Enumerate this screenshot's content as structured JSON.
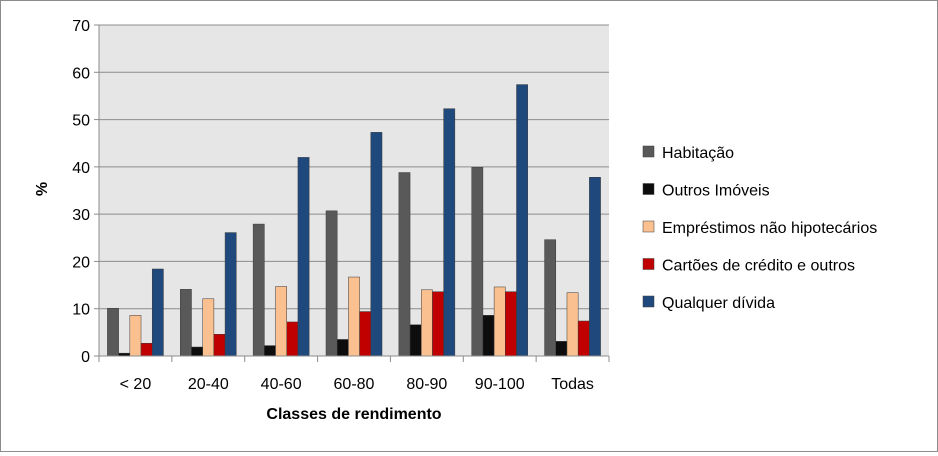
{
  "chart_data": {
    "type": "bar",
    "title": "",
    "xlabel": "Classes de rendimento",
    "ylabel": "%",
    "ylim": [
      0,
      70
    ],
    "yticks": [
      0,
      10,
      20,
      30,
      40,
      50,
      60,
      70
    ],
    "grid": true,
    "legend_position": "right",
    "categories": [
      "< 20",
      "20-40",
      "40-60",
      "60-80",
      "80-90",
      "90-100",
      "Todas"
    ],
    "series": [
      {
        "name": "Habitação",
        "color": "#595959",
        "values": [
          10.1,
          14.1,
          27.9,
          30.7,
          38.8,
          39.9,
          24.6
        ]
      },
      {
        "name": "Outros Imóveis",
        "color": "#0d0d0d",
        "values": [
          0.6,
          1.9,
          2.2,
          3.5,
          6.6,
          8.6,
          3.1
        ]
      },
      {
        "name": "Empréstimos não hipotecários",
        "color": "#fac090",
        "values": [
          8.6,
          12.1,
          14.7,
          16.7,
          14.0,
          14.6,
          13.4
        ]
      },
      {
        "name": "Cartões de crédito e outros",
        "color": "#c00000",
        "values": [
          2.7,
          4.6,
          7.2,
          9.4,
          13.6,
          13.6,
          7.4
        ]
      },
      {
        "name": "Qualquer dívida",
        "color": "#1f497d",
        "values": [
          18.4,
          26.1,
          42.0,
          47.3,
          52.3,
          57.4,
          37.8
        ]
      }
    ]
  }
}
